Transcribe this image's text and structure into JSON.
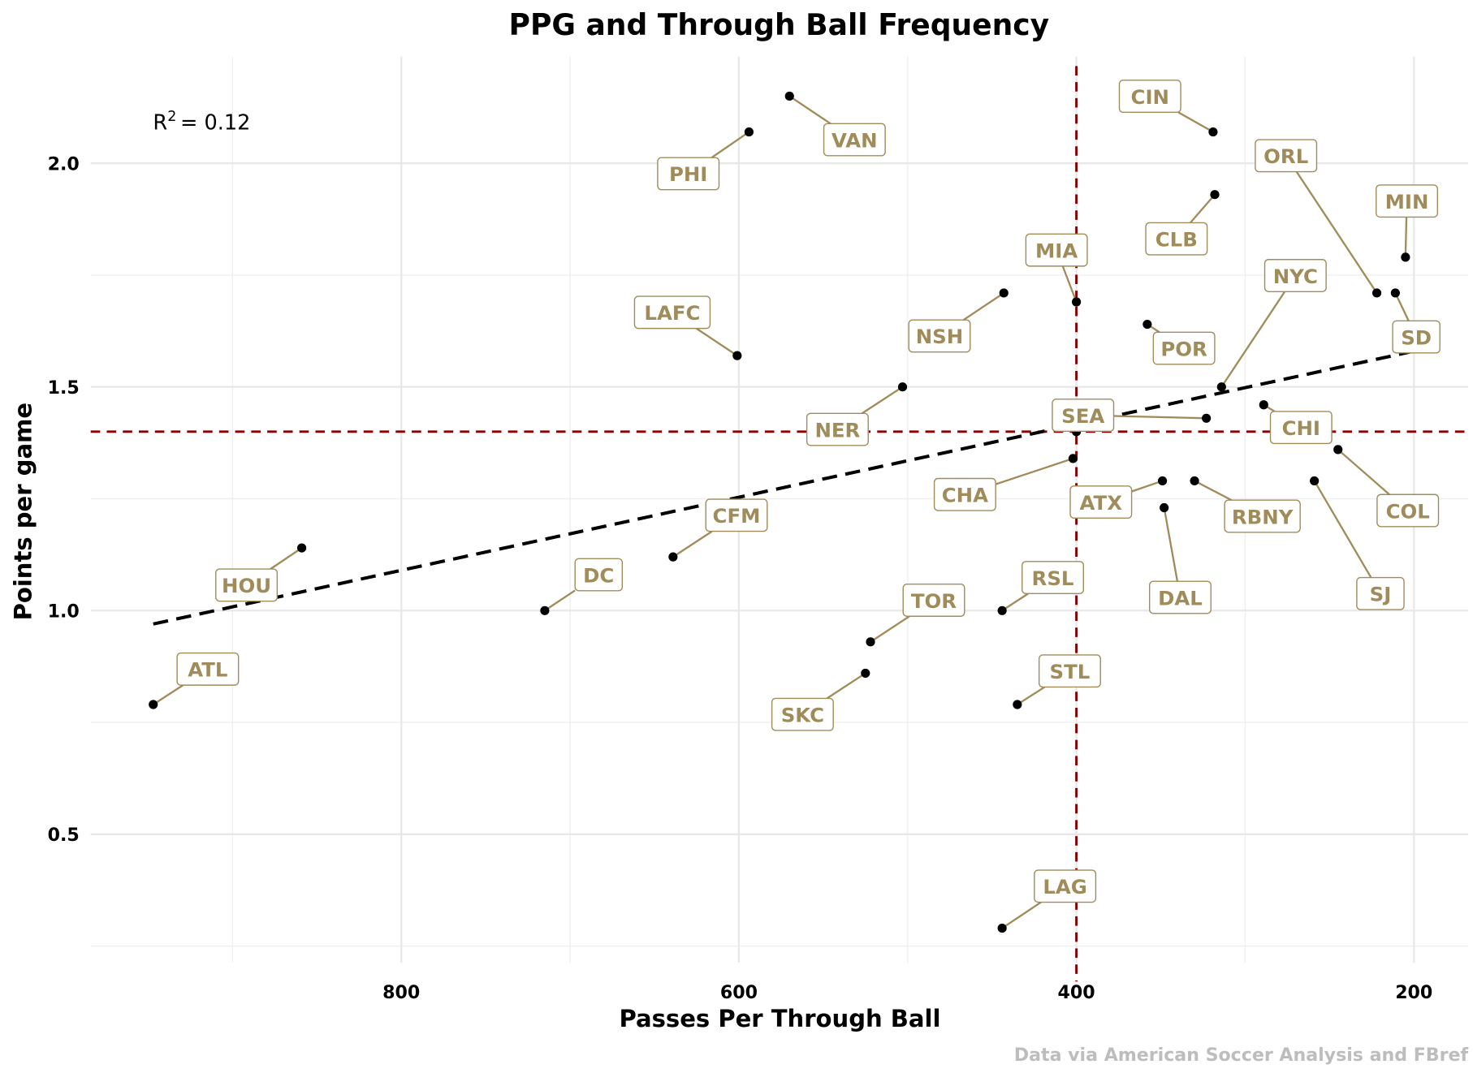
{
  "chart_data": {
    "type": "scatter",
    "title": "PPG and Through Ball Frequency",
    "xlabel": "Passes Per Through Ball",
    "ylabel": "Points per game",
    "caption": "Data via American Soccer Analysis and FBref",
    "annotation": {
      "r2_label": "R",
      "r2_sup": "2",
      "r2_value": "= 0.12"
    },
    "x_reversed": true,
    "xlim": [
      980,
      170
    ],
    "ylim": [
      0.22,
      2.27
    ],
    "x_ticks": [
      800,
      600,
      400,
      200
    ],
    "x_tick_labels": [
      "800",
      "600",
      "400",
      "200"
    ],
    "y_ticks": [
      0.5,
      1.0,
      1.5,
      2.0
    ],
    "y_tick_labels": [
      "0.5",
      "1.0",
      "1.5",
      "2.0"
    ],
    "grid": true,
    "reference_lines": {
      "x": 400,
      "y": 1.4,
      "color": "#8b0000"
    },
    "trend_line": {
      "x": [
        947,
        200
      ],
      "y": [
        0.97,
        1.58
      ]
    },
    "colors": {
      "label": "#a08c5b",
      "point": "#000000",
      "trend": "#000000"
    },
    "points": [
      {
        "team": "ATL",
        "x": 947,
        "y": 0.79
      },
      {
        "team": "HOU",
        "x": 859,
        "y": 1.14
      },
      {
        "team": "DC",
        "x": 715,
        "y": 1.0
      },
      {
        "team": "CFM",
        "x": 639,
        "y": 1.12
      },
      {
        "team": "LAFC",
        "x": 601,
        "y": 1.57
      },
      {
        "team": "PHI",
        "x": 594,
        "y": 2.07
      },
      {
        "team": "VAN",
        "x": 570,
        "y": 2.15
      },
      {
        "team": "NER",
        "x": 503,
        "y": 1.5
      },
      {
        "team": "TOR",
        "x": 522,
        "y": 0.93
      },
      {
        "team": "SKC",
        "x": 525,
        "y": 0.86
      },
      {
        "team": "NSH",
        "x": 443,
        "y": 1.71
      },
      {
        "team": "RSL",
        "x": 444,
        "y": 1.0
      },
      {
        "team": "LAG",
        "x": 444,
        "y": 0.29
      },
      {
        "team": "STL",
        "x": 435,
        "y": 0.79
      },
      {
        "team": "MIA",
        "x": 400,
        "y": 1.69
      },
      {
        "team": "CHA",
        "x": 402,
        "y": 1.34
      },
      {
        "team": "SEA",
        "x": 323,
        "y": 1.43
      },
      {
        "team": "POR",
        "x": 358,
        "y": 1.64
      },
      {
        "team": "CIN",
        "x": 319,
        "y": 2.07
      },
      {
        "team": "CLB",
        "x": 318,
        "y": 1.93
      },
      {
        "team": "NYC",
        "x": 314,
        "y": 1.5
      },
      {
        "team": "CHI",
        "x": 289,
        "y": 1.46
      },
      {
        "team": "ATX",
        "x": 349,
        "y": 1.29
      },
      {
        "team": "DAL",
        "x": 348,
        "y": 1.23
      },
      {
        "team": "RBNY",
        "x": 330,
        "y": 1.29
      },
      {
        "team": "SJ",
        "x": 259,
        "y": 1.29
      },
      {
        "team": "COL",
        "x": 245,
        "y": 1.36
      },
      {
        "team": "ORL",
        "x": 222,
        "y": 1.71
      },
      {
        "team": "SD",
        "x": 211,
        "y": 1.71
      },
      {
        "team": "MIN",
        "x": 205,
        "y": 1.79
      },
      {
        "team": null,
        "x": 400,
        "y": 1.4
      }
    ]
  }
}
